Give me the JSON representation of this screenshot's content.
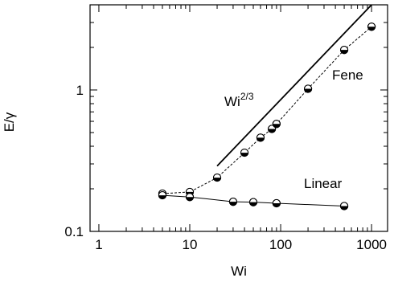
{
  "chart_data": {
    "type": "scatter",
    "xscale": "log",
    "yscale": "log",
    "xlim": [
      0.8,
      1500
    ],
    "ylim": [
      0.1,
      4
    ],
    "xlabel": "Wi",
    "ylabel": "E/γ",
    "xticks": [
      1,
      10,
      100,
      1000
    ],
    "xtick_labels": [
      "1",
      "10",
      "100",
      "1000"
    ],
    "yticks": [
      0.1,
      1
    ],
    "ytick_labels": [
      "0.1",
      "1"
    ],
    "grid": false,
    "series": [
      {
        "name": "Fene",
        "line_style": "dashed",
        "x": [
          5,
          10,
          20,
          40,
          60,
          80,
          90,
          200,
          500,
          1000
        ],
        "y": [
          0.185,
          0.19,
          0.24,
          0.36,
          0.46,
          0.53,
          0.575,
          1.02,
          1.92,
          2.8
        ]
      },
      {
        "name": "Linear",
        "line_style": "solid",
        "x": [
          5,
          10,
          30,
          50,
          90,
          500
        ],
        "y": [
          0.18,
          0.175,
          0.162,
          0.161,
          0.158,
          0.151
        ]
      }
    ],
    "reference_line": {
      "label_base": "Wi",
      "label_exponent": "2/3",
      "x": [
        20,
        1000
      ],
      "y": [
        0.29,
        4.0
      ]
    },
    "annotations": {
      "fene": "Fene",
      "linear": "Linear",
      "wi_base": "Wi",
      "wi_exponent": "2/3"
    }
  }
}
